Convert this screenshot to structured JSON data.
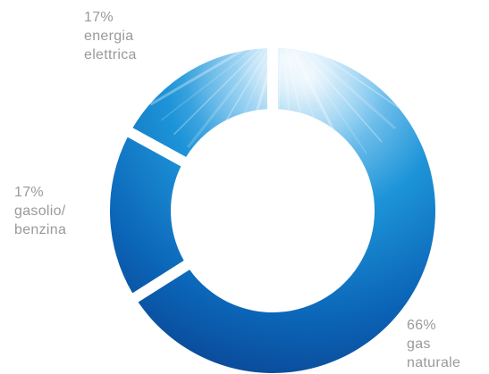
{
  "chart_data": {
    "type": "pie",
    "donut": true,
    "start_angle_deg": 0,
    "direction": "clockwise",
    "slices": [
      {
        "key": "gas",
        "value": 66,
        "label_lines": [
          "66%",
          "gas",
          "naturale"
        ],
        "color_light": "#2a7fd0",
        "color_dark": "#0a3f8c"
      },
      {
        "key": "diesel",
        "value": 17,
        "label_lines": [
          "17%",
          "gasolio/",
          "benzina"
        ],
        "color_light": "#1f78cc",
        "color_dark": "#0a4a9a"
      },
      {
        "key": "electric",
        "value": 17,
        "label_lines": [
          "17%",
          "energia",
          "elettrica"
        ],
        "color_light": "#3a96dd",
        "color_dark": "#0b5fae"
      }
    ],
    "highlight_color": "#e6f3fb",
    "label_color": "#9a9a9a"
  }
}
